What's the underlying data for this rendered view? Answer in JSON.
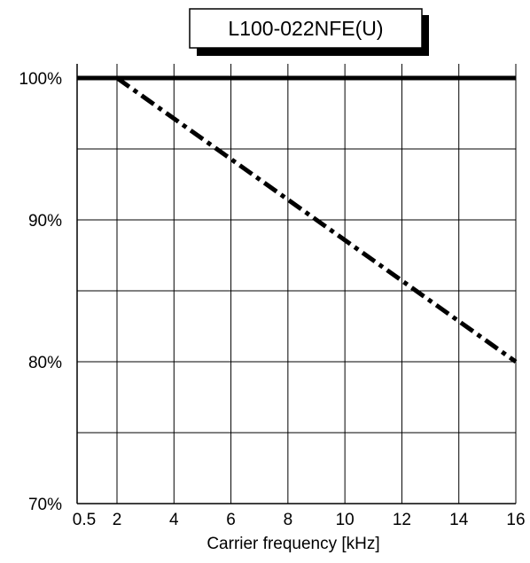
{
  "chart_data": {
    "type": "line",
    "title": "L100-022NFE(U)",
    "xlabel": "Carrier frequency [kHz]",
    "ylabel": "",
    "xlim": [
      0.5,
      16
    ],
    "ylim": [
      70,
      100
    ],
    "x_ticks": [
      0.5,
      2,
      4,
      6,
      8,
      10,
      12,
      14,
      16
    ],
    "x_tick_labels": [
      "0.5",
      "2",
      "4",
      "6",
      "8",
      "10",
      "12",
      "14",
      "16"
    ],
    "y_ticks": [
      70,
      80,
      90,
      100
    ],
    "y_tick_labels": [
      "70%",
      "80%",
      "90%",
      "100%"
    ],
    "y_grid": [
      75,
      80,
      85,
      90,
      95
    ],
    "grid": true,
    "series": [
      {
        "style": "solid",
        "x": [
          0.5,
          16
        ],
        "y": [
          100,
          100
        ]
      },
      {
        "style": "dash-dot",
        "x": [
          2,
          16
        ],
        "y": [
          100,
          80
        ]
      }
    ]
  }
}
